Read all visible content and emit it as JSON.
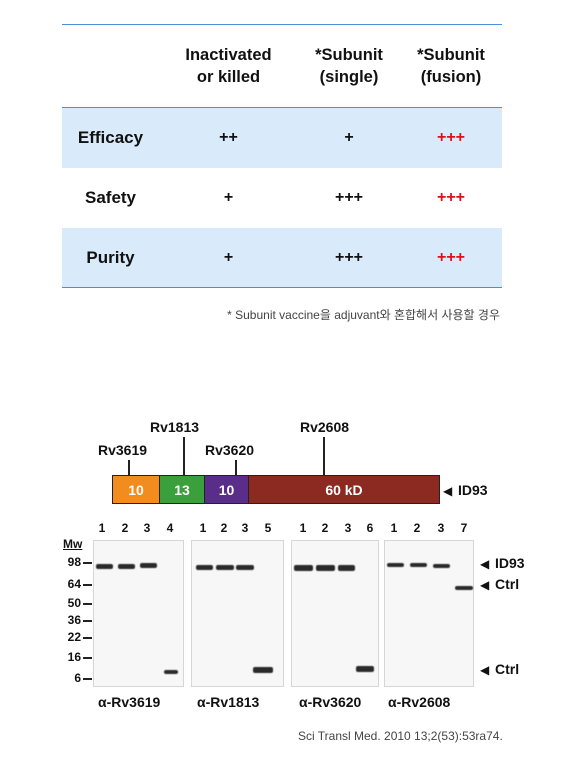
{
  "table": {
    "headers": [
      {
        "line1": "",
        "line2": ""
      },
      {
        "line1": "Inactivated",
        "line2": "or killed"
      },
      {
        "line1": "*Subunit",
        "line2": "(single)"
      },
      {
        "line1": "*Subunit",
        "line2": "(fusion)"
      }
    ],
    "rows": [
      {
        "label": "Efficacy",
        "values": [
          "++",
          "+",
          "+++"
        ]
      },
      {
        "label": "Safety",
        "values": [
          "+",
          "+++",
          "+++"
        ]
      },
      {
        "label": "Purity",
        "values": [
          "+",
          "+++",
          "+++"
        ]
      }
    ],
    "highlight_color": "#e0101a",
    "shade_color": "#d9eafb",
    "footnote": "* Subunit vaccine을 adjuvant와 혼합해서 사용할 경우"
  },
  "figure": {
    "gene_labels": [
      "Rv3619",
      "Rv1813",
      "Rv3620",
      "Rv2608"
    ],
    "segments": [
      {
        "text": "10",
        "color": "#f28c1e"
      },
      {
        "text": "13",
        "color": "#3aa03c"
      },
      {
        "text": "10",
        "color": "#5a2d8a"
      },
      {
        "text": "60 kD",
        "color": "#8c2a22"
      }
    ],
    "construct_label": "ID93",
    "mw_header": "Mw",
    "mw_markers": [
      "98",
      "64",
      "50",
      "36",
      "22",
      "16",
      "6"
    ],
    "panels": [
      {
        "lanes": [
          "1",
          "2",
          "3",
          "4"
        ],
        "antibody": "α-Rv3619"
      },
      {
        "lanes": [
          "1",
          "2",
          "3",
          "5"
        ],
        "antibody": "α-Rv1813"
      },
      {
        "lanes": [
          "1",
          "2",
          "3",
          "6"
        ],
        "antibody": "α-Rv3620"
      },
      {
        "lanes": [
          "1",
          "2",
          "3",
          "7"
        ],
        "antibody": "α-Rv2608"
      }
    ],
    "right_labels": [
      "ID93",
      "Ctrl",
      "Ctrl"
    ],
    "citation": "Sci Transl Med. 2010 13;2(53):53ra74."
  }
}
